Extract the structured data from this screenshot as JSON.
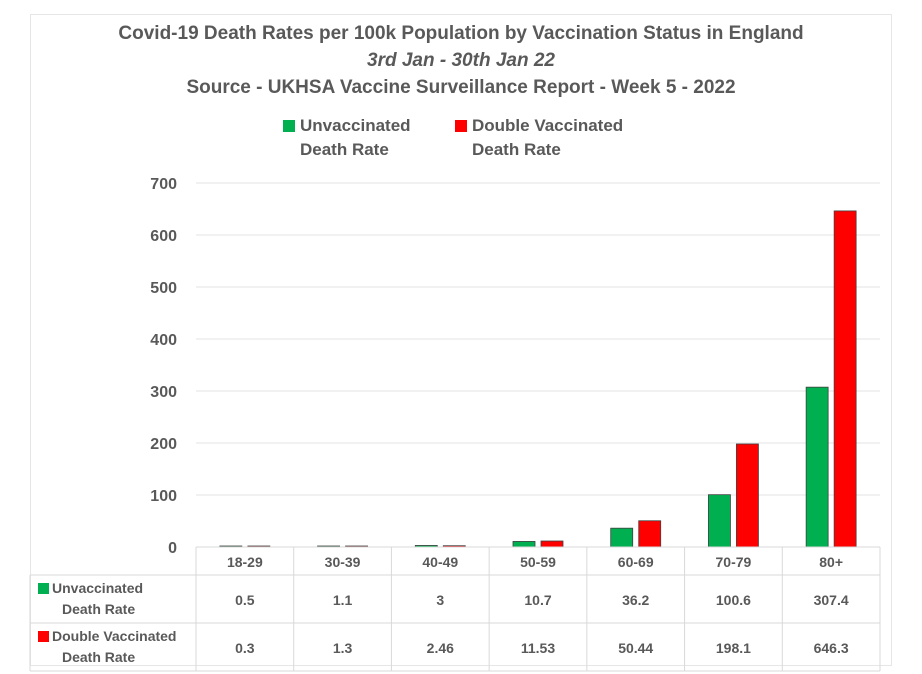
{
  "chart_data": {
    "type": "bar",
    "title": "Covid-19 Death Rates per 100k Population by Vaccination Status in England",
    "subtitle": "3rd Jan - 30th Jan 22",
    "source": "Source - UKHSA Vaccine Surveillance Report - Week 5 - 2022",
    "categories": [
      "18-29",
      "30-39",
      "40-49",
      "50-59",
      "60-69",
      "70-79",
      "80+"
    ],
    "series": [
      {
        "name": "Unvaccinated Death Rate",
        "name_line1": "Unvaccinated",
        "name_line2": "Death Rate",
        "color": "#00b050",
        "values": [
          0.5,
          1.1,
          3,
          10.7,
          36.2,
          100.6,
          307.4
        ],
        "labels": [
          "0.5",
          "1.1",
          "3",
          "10.7",
          "36.2",
          "100.6",
          "307.4"
        ]
      },
      {
        "name": "Double Vaccinated Death Rate",
        "name_line1": "Double Vaccinated",
        "name_line2": "Death Rate",
        "color": "#ff0000",
        "values": [
          0.3,
          1.3,
          2.46,
          11.53,
          50.44,
          198.1,
          646.3
        ],
        "labels": [
          "0.3",
          "1.3",
          "2.46",
          "11.53",
          "50.44",
          "198.1",
          "646.3"
        ]
      }
    ],
    "ylim": [
      0,
      700
    ],
    "yticks": [
      "0",
      "100",
      "200",
      "300",
      "400",
      "500",
      "600",
      "700"
    ],
    "grid": true,
    "legend_position": "top",
    "data_table": true
  }
}
